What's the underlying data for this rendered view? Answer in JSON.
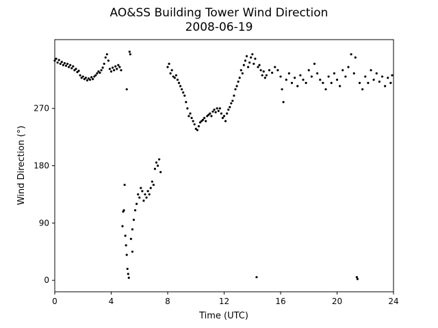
{
  "chart_data": {
    "type": "scatter",
    "title": "AO&SS Building Tower Wind Direction",
    "subtitle": "2008-06-19",
    "x_label": "Time (UTC)",
    "y_label": "Wind Direction (°)",
    "color": "#000000",
    "xlim": [
      0,
      24
    ],
    "xticks": [
      0,
      4,
      8,
      12,
      16,
      20,
      24
    ],
    "ylim": [
      -18,
      378
    ],
    "yticks": [
      0,
      90,
      180,
      270
    ],
    "x": [
      0.0,
      0.1,
      0.2,
      0.3,
      0.4,
      0.5,
      0.6,
      0.7,
      0.8,
      0.9,
      1.0,
      1.1,
      1.2,
      1.3,
      1.4,
      1.5,
      1.6,
      1.7,
      1.8,
      1.9,
      2.0,
      2.1,
      2.2,
      2.3,
      2.4,
      2.5,
      2.6,
      2.7,
      2.8,
      2.9,
      3.0,
      3.1,
      3.2,
      3.3,
      3.4,
      3.5,
      3.6,
      3.7,
      3.8,
      3.9,
      4.0,
      4.1,
      4.2,
      4.3,
      4.4,
      4.5,
      4.6,
      4.7,
      4.8,
      4.85,
      4.9,
      4.95,
      5.0,
      5.05,
      5.1,
      5.15,
      5.2,
      5.25,
      5.1,
      5.3,
      5.35,
      5.4,
      5.5,
      5.5,
      5.6,
      5.7,
      5.8,
      5.9,
      6.0,
      6.1,
      6.2,
      6.3,
      6.4,
      6.5,
      6.6,
      6.7,
      6.8,
      6.9,
      7.0,
      7.1,
      7.2,
      7.3,
      7.4,
      7.5,
      8.0,
      8.1,
      8.2,
      8.3,
      8.4,
      8.5,
      8.6,
      8.7,
      8.8,
      8.9,
      9.0,
      9.1,
      9.2,
      9.3,
      9.4,
      9.5,
      9.6,
      9.7,
      9.8,
      9.9,
      10.0,
      10.1,
      10.2,
      10.3,
      10.4,
      10.5,
      10.6,
      10.7,
      10.8,
      10.9,
      11.0,
      11.1,
      11.2,
      11.3,
      11.4,
      11.5,
      11.6,
      11.7,
      11.8,
      11.9,
      12.0,
      12.1,
      12.2,
      12.3,
      12.4,
      12.5,
      12.6,
      12.7,
      12.8,
      12.9,
      13.0,
      13.1,
      13.2,
      13.3,
      13.4,
      13.5,
      13.6,
      13.7,
      13.8,
      13.9,
      14.0,
      14.1,
      14.2,
      14.3,
      14.4,
      14.5,
      14.6,
      14.7,
      14.8,
      14.9,
      15.0,
      15.2,
      15.4,
      15.6,
      15.8,
      16.0,
      16.1,
      16.2,
      16.4,
      16.6,
      16.8,
      17.0,
      17.2,
      17.4,
      17.6,
      17.8,
      18.0,
      18.2,
      18.4,
      18.6,
      18.8,
      19.0,
      19.2,
      19.4,
      19.6,
      19.8,
      20.0,
      20.2,
      20.4,
      20.6,
      20.8,
      21.0,
      21.2,
      21.3,
      21.4,
      21.45,
      21.6,
      21.8,
      22.0,
      22.2,
      22.4,
      22.6,
      22.8,
      23.0,
      23.2,
      23.4,
      23.6,
      23.8,
      23.9
    ],
    "values": [
      345,
      348,
      342,
      346,
      340,
      343,
      338,
      341,
      337,
      340,
      335,
      338,
      333,
      336,
      330,
      332,
      327,
      329,
      322,
      318,
      320,
      316,
      318,
      314,
      317,
      315,
      319,
      316,
      320,
      322,
      325,
      328,
      326,
      330,
      334,
      340,
      350,
      355,
      345,
      332,
      328,
      334,
      330,
      336,
      332,
      338,
      335,
      330,
      85,
      108,
      110,
      150,
      70,
      55,
      40,
      18,
      10,
      4,
      300,
      359,
      355,
      65,
      80,
      45,
      95,
      110,
      120,
      135,
      130,
      145,
      140,
      125,
      135,
      130,
      140,
      135,
      145,
      155,
      150,
      175,
      185,
      180,
      190,
      170,
      335,
      340,
      325,
      330,
      320,
      318,
      322,
      315,
      310,
      305,
      300,
      295,
      290,
      280,
      270,
      258,
      262,
      255,
      250,
      245,
      238,
      236,
      242,
      248,
      250,
      252,
      255,
      250,
      258,
      260,
      262,
      258,
      265,
      268,
      264,
      270,
      266,
      270,
      262,
      255,
      258,
      250,
      262,
      268,
      272,
      278,
      282,
      290,
      300,
      305,
      312,
      318,
      330,
      325,
      338,
      345,
      352,
      335,
      342,
      350,
      355,
      340,
      348,
      5,
      335,
      338,
      330,
      322,
      328,
      318,
      322,
      330,
      326,
      335,
      330,
      320,
      300,
      280,
      315,
      325,
      310,
      318,
      305,
      322,
      315,
      310,
      330,
      320,
      340,
      325,
      315,
      310,
      300,
      320,
      310,
      325,
      315,
      305,
      330,
      320,
      335,
      355,
      325,
      350,
      5,
      2,
      310,
      300,
      320,
      310,
      330,
      315,
      325,
      312,
      320,
      305,
      318,
      310,
      322
    ]
  }
}
